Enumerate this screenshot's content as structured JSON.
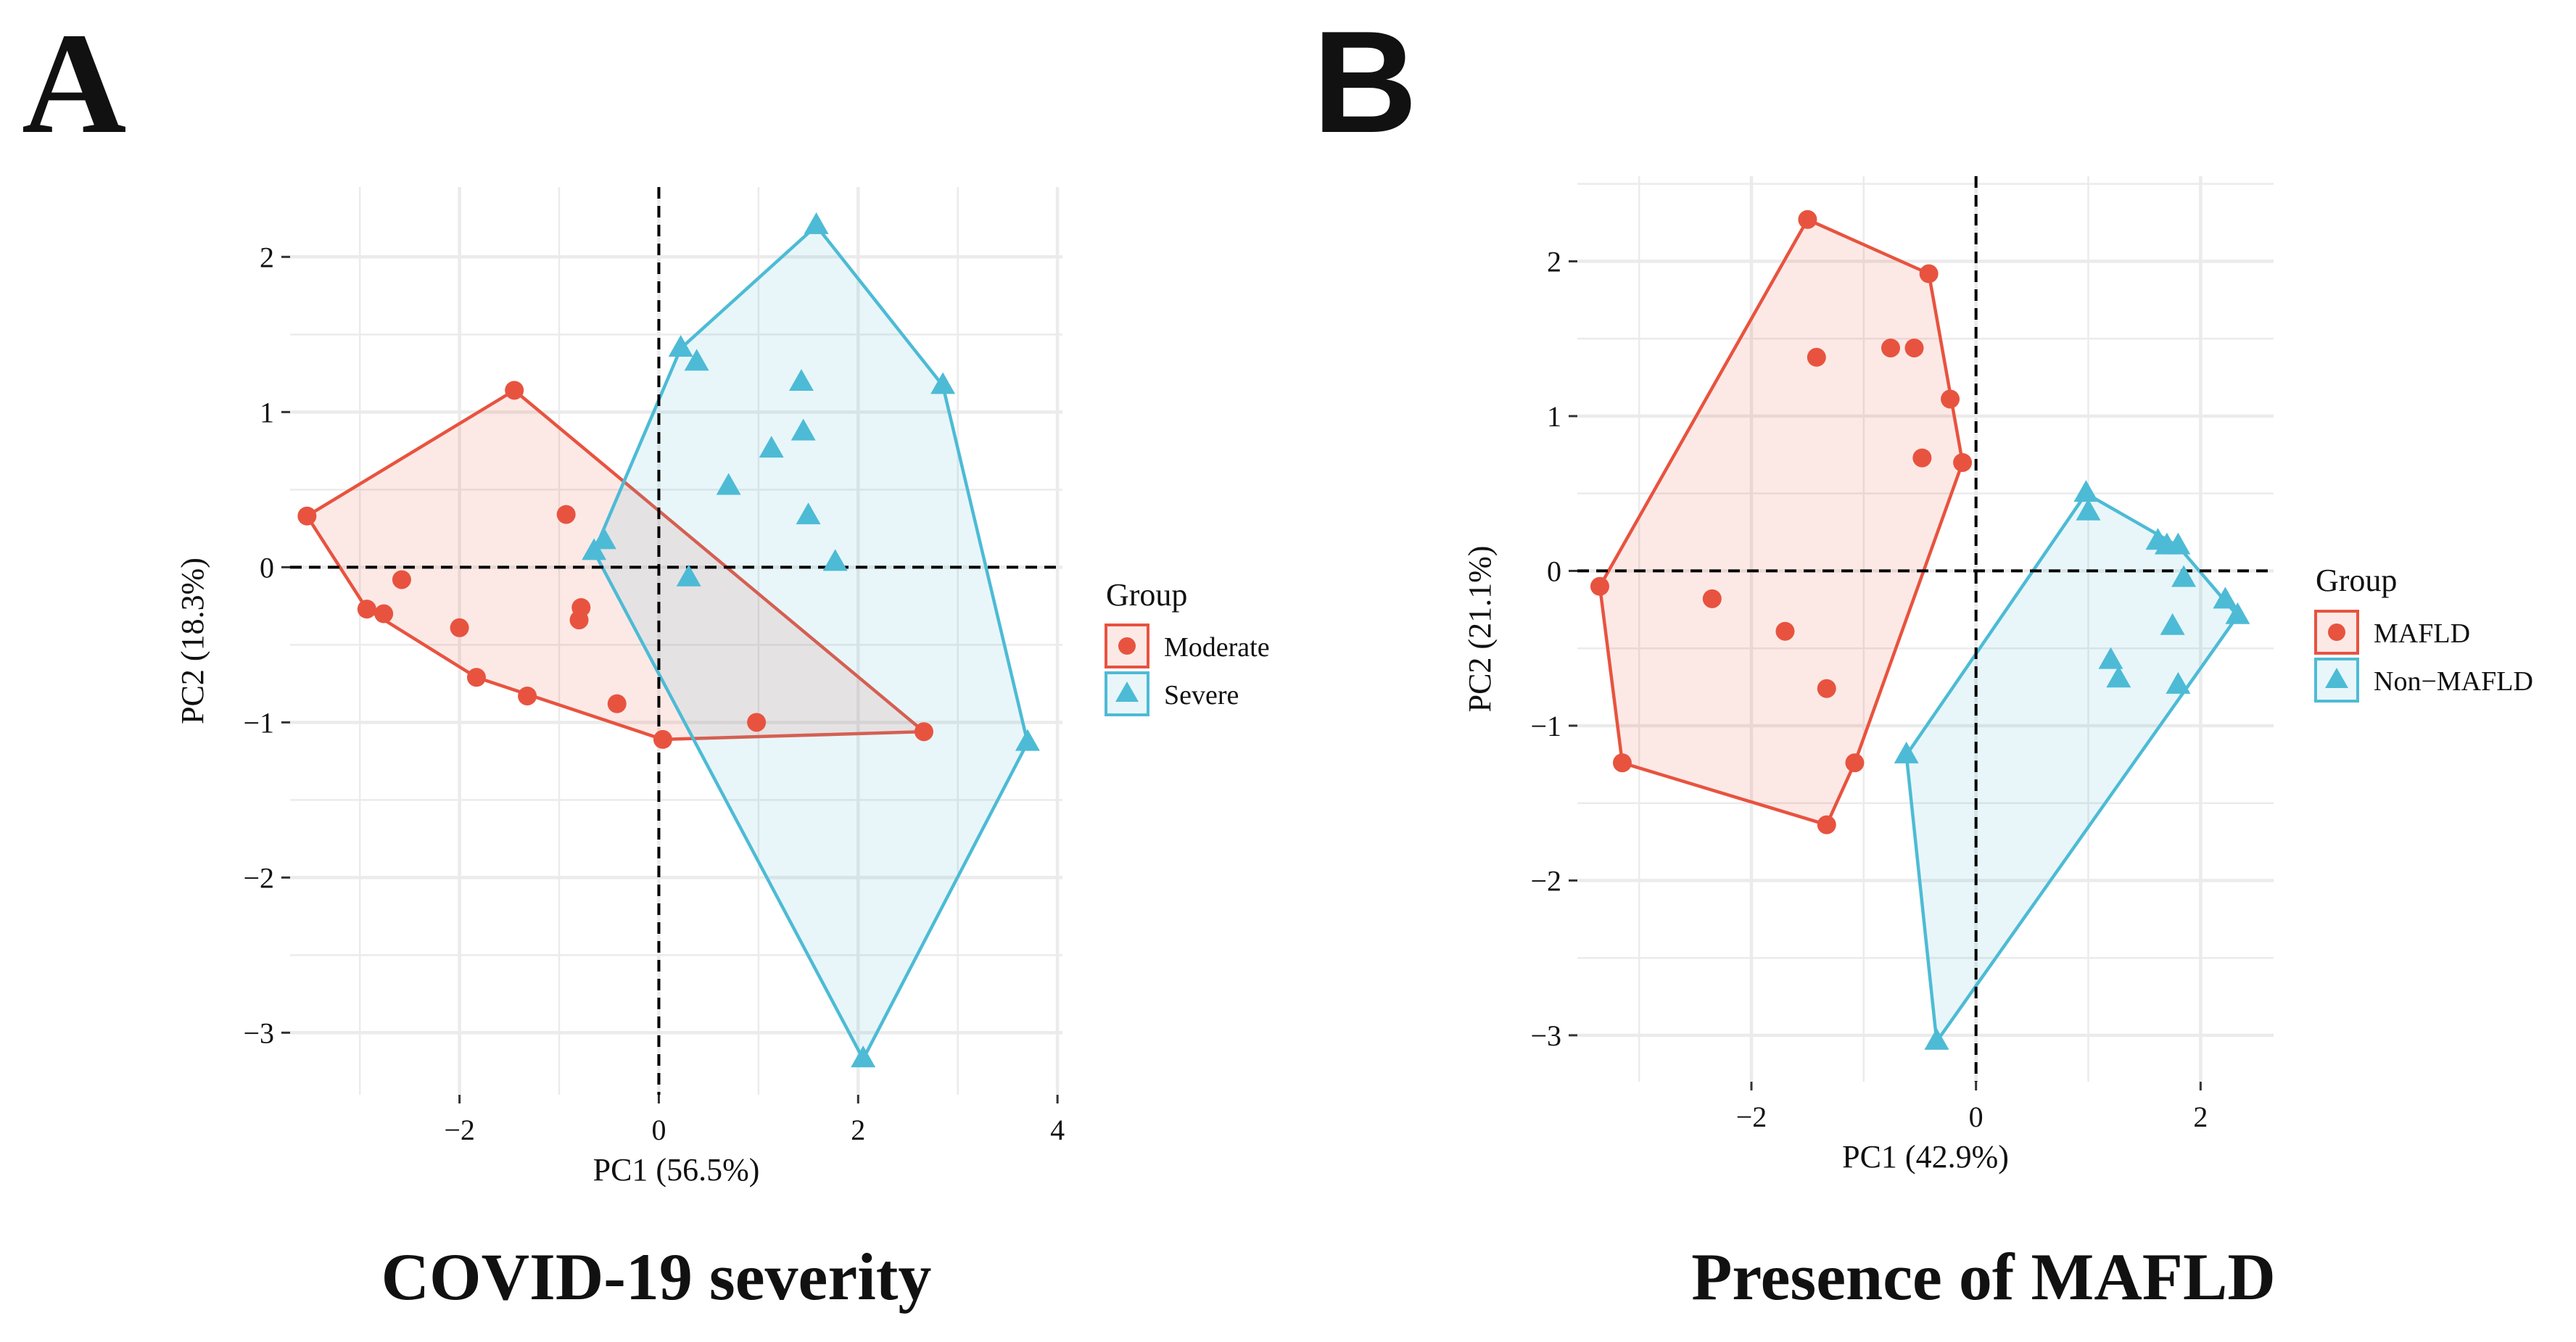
{
  "colors": {
    "moderate": "#E8533F",
    "severe": "#4DBBD5",
    "grid": "#EBEBEB",
    "text": "#111111",
    "axis_text": "#4D4D4D"
  },
  "panels": {
    "A": {
      "letter": "A",
      "caption": "COVID-19 severity",
      "legend_title": "Group"
    },
    "B": {
      "letter": "B",
      "caption": "Presence of MAFLD",
      "legend_title": "Group"
    }
  },
  "chart_data": [
    {
      "type": "scatter",
      "panel": "A",
      "title": "COVID-19 severity",
      "xlabel": "PC1 (56.5%)",
      "ylabel": "PC2 (18.3%)",
      "xlim": [
        -3.7,
        4.05
      ],
      "ylim": [
        -3.4,
        2.45
      ],
      "xticks": [
        -2,
        0,
        2,
        4
      ],
      "yticks": [
        -3,
        -2,
        -1,
        0,
        1,
        2
      ],
      "reference_lines": {
        "x": 0,
        "y": 0
      },
      "legend_title": "Group",
      "series": [
        {
          "name": "Moderate",
          "marker": "circle",
          "points": [
            [
              -3.53,
              0.33
            ],
            [
              -1.45,
              1.14
            ],
            [
              -2.93,
              -0.27
            ],
            [
              -2.76,
              -0.3
            ],
            [
              -2.58,
              -0.08
            ],
            [
              -2.0,
              -0.39
            ],
            [
              -1.83,
              -0.71
            ],
            [
              -1.32,
              -0.83
            ],
            [
              -0.93,
              0.34
            ],
            [
              -0.78,
              -0.26
            ],
            [
              -0.8,
              -0.34
            ],
            [
              -0.42,
              -0.88
            ],
            [
              0.04,
              -1.11
            ],
            [
              0.98,
              -1.0
            ],
            [
              2.66,
              -1.06
            ]
          ],
          "hull": [
            [
              -3.53,
              0.33
            ],
            [
              -1.45,
              1.14
            ],
            [
              2.66,
              -1.06
            ],
            [
              0.04,
              -1.11
            ],
            [
              -1.83,
              -0.71
            ],
            [
              -2.93,
              -0.27
            ]
          ]
        },
        {
          "name": "Severe",
          "marker": "triangle",
          "points": [
            [
              1.58,
              2.2
            ],
            [
              0.22,
              1.41
            ],
            [
              0.38,
              1.32
            ],
            [
              1.43,
              1.19
            ],
            [
              2.85,
              1.17
            ],
            [
              1.13,
              0.76
            ],
            [
              1.45,
              0.87
            ],
            [
              0.7,
              0.52
            ],
            [
              1.5,
              0.33
            ],
            [
              -0.55,
              0.17
            ],
            [
              -0.65,
              0.1
            ],
            [
              0.3,
              -0.07
            ],
            [
              1.77,
              0.03
            ],
            [
              3.7,
              -1.13
            ],
            [
              2.05,
              -3.17
            ]
          ],
          "hull": [
            [
              1.58,
              2.2
            ],
            [
              2.85,
              1.17
            ],
            [
              3.7,
              -1.13
            ],
            [
              2.05,
              -3.17
            ],
            [
              -0.65,
              0.1
            ],
            [
              0.22,
              1.41
            ]
          ]
        }
      ]
    },
    {
      "type": "scatter",
      "panel": "B",
      "title": "Presence of MAFLD",
      "xlabel": "PC1 (42.9%)",
      "ylabel": "PC2 (21.1%)",
      "xlim": [
        -3.55,
        2.65
      ],
      "ylim": [
        -3.3,
        2.55
      ],
      "xticks": [
        -2,
        0,
        2
      ],
      "yticks": [
        -3,
        -2,
        -1,
        0,
        1,
        2
      ],
      "reference_lines": {
        "x": 0,
        "y": 0
      },
      "legend_title": "Group",
      "series": [
        {
          "name": "MAFLD",
          "marker": "circle",
          "points": [
            [
              -1.5,
              2.27
            ],
            [
              -0.42,
              1.92
            ],
            [
              -1.42,
              1.38
            ],
            [
              -0.76,
              1.44
            ],
            [
              -0.55,
              1.44
            ],
            [
              -0.23,
              1.11
            ],
            [
              -0.48,
              0.73
            ],
            [
              -0.12,
              0.7
            ],
            [
              -3.35,
              -0.1
            ],
            [
              -2.35,
              -0.18
            ],
            [
              -1.7,
              -0.39
            ],
            [
              -1.33,
              -0.76
            ],
            [
              -1.08,
              -1.24
            ],
            [
              -3.15,
              -1.24
            ],
            [
              -1.33,
              -1.64
            ]
          ],
          "hull": [
            [
              -1.5,
              2.27
            ],
            [
              -0.42,
              1.92
            ],
            [
              -0.12,
              0.7
            ],
            [
              -1.08,
              -1.24
            ],
            [
              -1.33,
              -1.64
            ],
            [
              -3.15,
              -1.24
            ],
            [
              -3.35,
              -0.1
            ]
          ]
        },
        {
          "name": "Non−MAFLD",
          "marker": "triangle",
          "points": [
            [
              0.98,
              0.5
            ],
            [
              1.0,
              0.38
            ],
            [
              1.62,
              0.19
            ],
            [
              1.7,
              0.16
            ],
            [
              1.8,
              0.16
            ],
            [
              1.85,
              -0.05
            ],
            [
              2.22,
              -0.19
            ],
            [
              2.33,
              -0.29
            ],
            [
              1.75,
              -0.36
            ],
            [
              1.2,
              -0.58
            ],
            [
              1.27,
              -0.7
            ],
            [
              1.8,
              -0.74
            ],
            [
              -0.62,
              -1.19
            ],
            [
              -0.35,
              -3.04
            ]
          ],
          "hull": [
            [
              0.98,
              0.5
            ],
            [
              1.8,
              0.16
            ],
            [
              2.33,
              -0.29
            ],
            [
              -0.35,
              -3.04
            ],
            [
              -0.62,
              -1.19
            ]
          ]
        }
      ]
    }
  ]
}
